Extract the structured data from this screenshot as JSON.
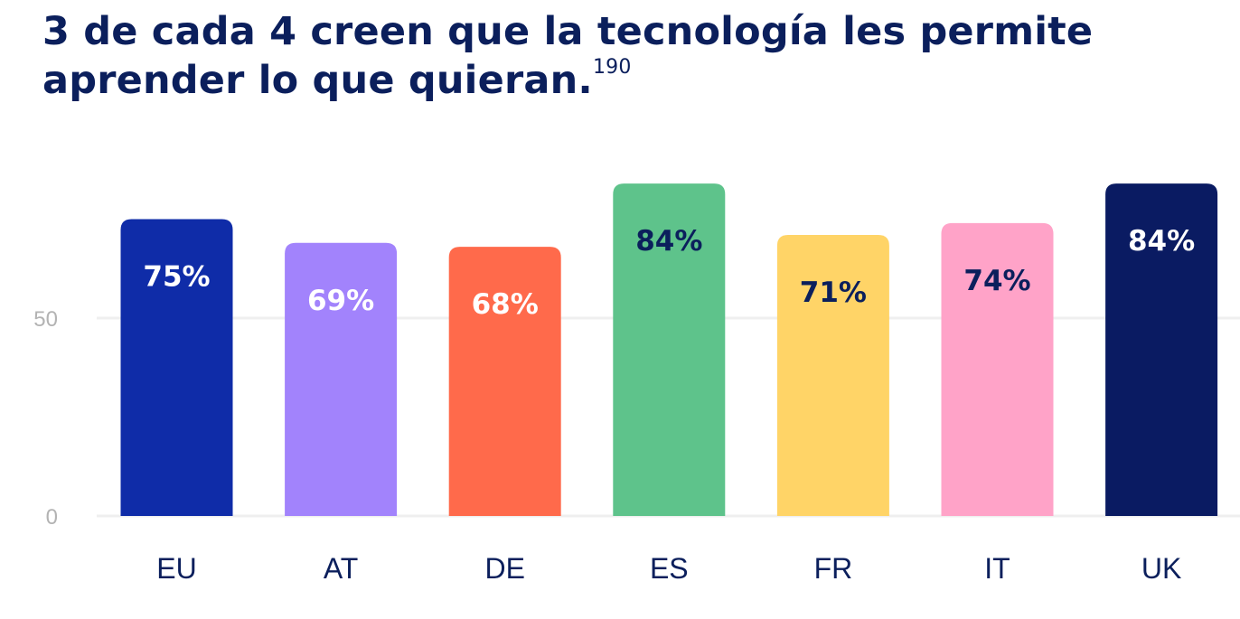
{
  "title": "3 de cada 4 creen que la tecnología les permite aprender lo que quieran.",
  "footnote": "190",
  "chart_data": {
    "type": "bar",
    "title": "3 de cada 4 creen que la tecnología les permite aprender lo que quieran.",
    "categories": [
      "EU",
      "AT",
      "DE",
      "ES",
      "FR",
      "IT",
      "UK"
    ],
    "values": [
      75,
      69,
      68,
      84,
      71,
      74,
      84
    ],
    "value_labels": [
      "75%",
      "69%",
      "68%",
      "84%",
      "71%",
      "74%",
      "84%"
    ],
    "colors": [
      "#0f2ca8",
      "#a283fc",
      "#ff6a4b",
      "#5ec38b",
      "#ffd467",
      "#ffa3c8",
      "#0a1b62"
    ],
    "label_colors": [
      "#ffffff",
      "#ffffff",
      "#ffffff",
      "#0b1f5c",
      "#0b1f5c",
      "#0b1f5c",
      "#ffffff"
    ],
    "yticks": [
      0,
      50
    ],
    "ylim": [
      0,
      100
    ],
    "grid": true,
    "xlabel": "",
    "ylabel": ""
  }
}
